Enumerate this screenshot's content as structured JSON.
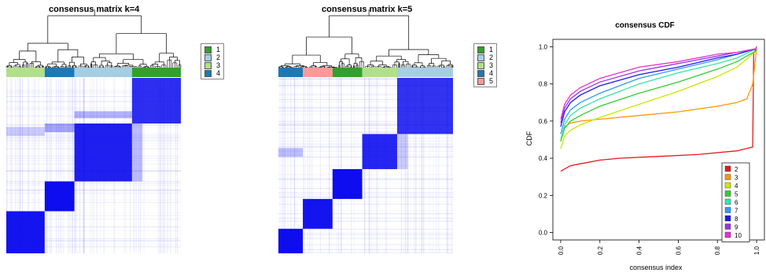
{
  "panels": {
    "left": {
      "title": "consensus matrix k=4",
      "legend": [
        "1",
        "2",
        "3",
        "4"
      ]
    },
    "middle": {
      "title": "consensus matrix k=5",
      "legend": [
        "1",
        "2",
        "3",
        "4",
        "5"
      ]
    }
  },
  "colors": {
    "cluster": {
      "1": "#33A02C",
      "2": "#A6CEE3",
      "3": "#B2DF8A",
      "4": "#1F78B4",
      "5": "#FB9A99"
    },
    "matrix": "#0000EE"
  },
  "left_bar_order": [
    "3",
    "4",
    "2",
    "1"
  ],
  "middle_bar_order": [
    "4",
    "5",
    "1",
    "3",
    "2"
  ],
  "chart_data": {
    "type": "line",
    "title": "consensus CDF",
    "xlabel": "consensus index",
    "ylabel": "CDF",
    "xlim": [
      0,
      1
    ],
    "ylim": [
      0,
      1
    ],
    "xticks": [
      "0.0",
      "0.2",
      "0.4",
      "0.6",
      "0.8",
      "1.0"
    ],
    "yticks": [
      "0.0",
      "0.2",
      "0.4",
      "0.6",
      "0.8",
      "1.0"
    ],
    "legend_position": "bottom-right",
    "series": [
      {
        "name": "2",
        "color": "#E41A1C",
        "x": [
          0,
          0.05,
          0.1,
          0.2,
          0.3,
          0.5,
          0.7,
          0.9,
          0.98,
          0.985,
          1.0
        ],
        "y": [
          0.33,
          0.36,
          0.37,
          0.39,
          0.4,
          0.41,
          0.42,
          0.44,
          0.46,
          0.96,
          1.0
        ]
      },
      {
        "name": "3",
        "color": "#FF9900",
        "x": [
          0,
          0.02,
          0.05,
          0.1,
          0.2,
          0.4,
          0.6,
          0.8,
          0.9,
          0.95,
          0.98,
          1.0
        ],
        "y": [
          0.5,
          0.57,
          0.59,
          0.6,
          0.61,
          0.63,
          0.65,
          0.68,
          0.7,
          0.72,
          0.8,
          0.99
        ]
      },
      {
        "name": "4",
        "color": "#CCE600",
        "x": [
          0,
          0.02,
          0.05,
          0.1,
          0.2,
          0.4,
          0.6,
          0.8,
          0.9,
          1.0
        ],
        "y": [
          0.45,
          0.52,
          0.55,
          0.58,
          0.62,
          0.69,
          0.76,
          0.84,
          0.89,
          0.98
        ]
      },
      {
        "name": "5",
        "color": "#33CC33",
        "x": [
          0,
          0.02,
          0.05,
          0.1,
          0.2,
          0.4,
          0.6,
          0.8,
          0.9,
          1.0
        ],
        "y": [
          0.49,
          0.56,
          0.6,
          0.63,
          0.68,
          0.75,
          0.81,
          0.88,
          0.92,
          0.98
        ]
      },
      {
        "name": "6",
        "color": "#33E6AA",
        "x": [
          0,
          0.02,
          0.05,
          0.1,
          0.2,
          0.4,
          0.6,
          0.8,
          0.9,
          1.0
        ],
        "y": [
          0.5,
          0.58,
          0.63,
          0.67,
          0.72,
          0.8,
          0.86,
          0.91,
          0.94,
          0.99
        ]
      },
      {
        "name": "7",
        "color": "#3399FF",
        "x": [
          0,
          0.02,
          0.05,
          0.1,
          0.2,
          0.4,
          0.6,
          0.8,
          0.9,
          1.0
        ],
        "y": [
          0.53,
          0.61,
          0.66,
          0.7,
          0.75,
          0.83,
          0.88,
          0.93,
          0.96,
          0.99
        ]
      },
      {
        "name": "8",
        "color": "#1A1AE6",
        "x": [
          0,
          0.02,
          0.05,
          0.1,
          0.2,
          0.4,
          0.6,
          0.8,
          0.9,
          1.0
        ],
        "y": [
          0.57,
          0.65,
          0.7,
          0.74,
          0.79,
          0.85,
          0.89,
          0.94,
          0.96,
          0.99
        ]
      },
      {
        "name": "9",
        "color": "#9933E6",
        "x": [
          0,
          0.02,
          0.05,
          0.1,
          0.2,
          0.4,
          0.6,
          0.8,
          0.9,
          1.0
        ],
        "y": [
          0.59,
          0.67,
          0.72,
          0.76,
          0.81,
          0.87,
          0.91,
          0.95,
          0.97,
          0.99
        ]
      },
      {
        "name": "10",
        "color": "#E633CC",
        "x": [
          0,
          0.02,
          0.05,
          0.1,
          0.2,
          0.4,
          0.6,
          0.8,
          0.9,
          1.0
        ],
        "y": [
          0.61,
          0.69,
          0.74,
          0.78,
          0.83,
          0.89,
          0.92,
          0.96,
          0.97,
          0.99
        ]
      }
    ]
  }
}
